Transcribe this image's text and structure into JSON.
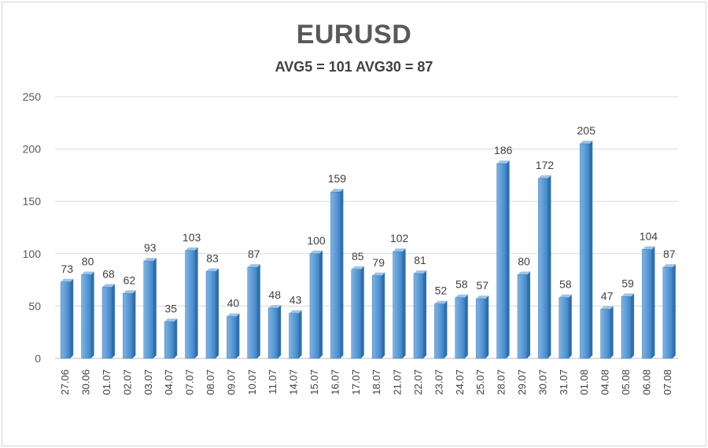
{
  "chart_data": {
    "type": "bar",
    "title": "EURUSD",
    "subtitle": "AVG5 = 101 AVG30 = 87",
    "xlabel": "",
    "ylabel": "",
    "ylim": [
      0,
      250
    ],
    "yticks": [
      0,
      50,
      100,
      150,
      200,
      250
    ],
    "grid": true,
    "categories": [
      "27.06",
      "30.06",
      "01.07",
      "02.07",
      "03.07",
      "04.07",
      "07.07",
      "08.07",
      "09.07",
      "10.07",
      "11.07",
      "14.07",
      "15.07",
      "16.07",
      "17.07",
      "18.07",
      "21.07",
      "22.07",
      "23.07",
      "24.07",
      "25.07",
      "28.07",
      "29.07",
      "30.07",
      "31.07",
      "01.08",
      "04.08",
      "05.08",
      "06.08",
      "07.08"
    ],
    "values": [
      73,
      80,
      68,
      62,
      93,
      35,
      103,
      83,
      40,
      87,
      48,
      43,
      100,
      159,
      85,
      79,
      102,
      81,
      52,
      58,
      57,
      186,
      80,
      172,
      58,
      205,
      47,
      59,
      104,
      87
    ],
    "colors": {
      "bar_front": "#5b9bd5",
      "bar_side": "#2e6fae",
      "bar_top": "#9dc3e6",
      "grid": "#d9d9d9",
      "axis": "#bfbfbf"
    }
  }
}
